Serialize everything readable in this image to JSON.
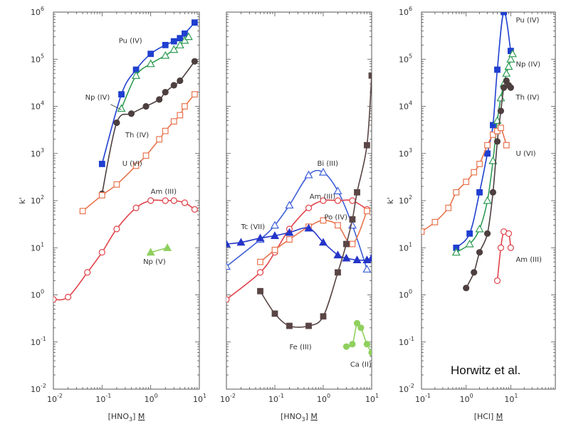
{
  "colors": {
    "Pu (IV)": "#1f3fd0",
    "Np (IV)": "#2e9b54",
    "Th (IV)": "#4d3f3f",
    "U (VI)": "#e8744e",
    "Am (III)": "#e0424a",
    "Np (V)": "#8fd05e",
    "Bi (III)": "#3f5fd8",
    "Tc (VII)": "#2535c8",
    "Po (IV)": "#e8744e",
    "Fe (III)": "#5a4545",
    "Ca (II)": "#8fd05e",
    "frame": "#555555"
  },
  "credit": "Horwitz et al.",
  "chart_data": [
    {
      "type": "scatter",
      "panel": "left",
      "xlabel": "[HNO3] M",
      "ylabel": "k'",
      "xscale": "log",
      "yscale": "log",
      "xlim": [
        0.01,
        10
      ],
      "ylim": [
        0.01,
        1000000
      ],
      "x_ticks": [
        {
          "b": "10",
          "e": "-2"
        },
        {
          "b": "10",
          "e": "-1"
        },
        {
          "b": "10",
          "e": "0"
        },
        {
          "b": "10",
          "e": "1"
        }
      ],
      "y_ticks": [
        {
          "b": "10",
          "e": "-2"
        },
        {
          "b": "10",
          "e": "-1"
        },
        {
          "b": "10",
          "e": "0"
        },
        {
          "b": "10",
          "e": "1"
        },
        {
          "b": "10",
          "e": "2"
        },
        {
          "b": "10",
          "e": "3"
        },
        {
          "b": "10",
          "e": "4"
        },
        {
          "b": "10",
          "e": "5"
        },
        {
          "b": "10",
          "e": "6"
        }
      ],
      "series": [
        {
          "name": "Pu (IV)",
          "marker": "square-filled",
          "x": [
            0.1,
            0.25,
            0.5,
            1,
            2,
            3,
            4,
            5,
            8
          ],
          "y": [
            600,
            18000,
            60000,
            130000,
            200000,
            240000,
            280000,
            350000,
            600000
          ]
        },
        {
          "name": "Np (IV)",
          "marker": "triangle-open",
          "x": [
            0.25,
            0.5,
            1,
            2,
            3,
            4,
            5,
            6
          ],
          "y": [
            9000,
            45000,
            80000,
            120000,
            160000,
            200000,
            250000,
            300000
          ]
        },
        {
          "name": "Th (IV)",
          "marker": "circle-filled",
          "x": [
            0.1,
            0.2,
            0.4,
            0.8,
            1.5,
            2,
            3,
            4,
            8
          ],
          "y": [
            140,
            4500,
            7000,
            10000,
            14000,
            20000,
            28000,
            35000,
            90000
          ]
        },
        {
          "name": "U (VI)",
          "marker": "square-open",
          "x": [
            0.04,
            0.1,
            0.2,
            0.5,
            0.8,
            1.5,
            2,
            3,
            4,
            5,
            8
          ],
          "y": [
            60,
            130,
            220,
            550,
            900,
            2000,
            3000,
            4800,
            6500,
            10000,
            18000
          ]
        },
        {
          "name": "Am (III)",
          "marker": "circle-open",
          "x": [
            0.01,
            0.02,
            0.05,
            0.1,
            0.2,
            0.5,
            1,
            2,
            3,
            5,
            8
          ],
          "y": [
            0.8,
            0.9,
            3,
            8,
            25,
            70,
            100,
            100,
            100,
            90,
            65
          ]
        },
        {
          "name": "Np (V)",
          "marker": "triangle-filled",
          "x": [
            1,
            2.2
          ],
          "y": [
            8,
            10
          ]
        }
      ],
      "labels": [
        {
          "text": "Pu (IV)",
          "x": 0.22,
          "y": 220000
        },
        {
          "text": "Np (IV)",
          "x": 0.045,
          "y": 14000
        },
        {
          "text": "Th (IV)",
          "x": 0.3,
          "y": 2200
        },
        {
          "text": "U (VI)",
          "x": 0.26,
          "y": 550
        },
        {
          "text": "Am (III)",
          "x": 1.0,
          "y": 140
        },
        {
          "text": "Np (V)",
          "x": 0.7,
          "y": 4.5
        }
      ]
    },
    {
      "type": "scatter",
      "panel": "middle",
      "xlabel": "[HNO3] M",
      "xscale": "log",
      "yscale": "log",
      "xlim": [
        0.01,
        10
      ],
      "ylim": [
        0.01,
        1000000
      ],
      "x_ticks": [
        {
          "b": "10",
          "e": "-2"
        },
        {
          "b": "10",
          "e": "-1"
        },
        {
          "b": "10",
          "e": "0"
        },
        {
          "b": "10",
          "e": "1"
        }
      ],
      "series": [
        {
          "name": "Bi (III)",
          "marker": "triangle-open",
          "x": [
            0.01,
            0.05,
            0.1,
            0.2,
            0.5,
            1,
            2,
            4,
            8
          ],
          "y": [
            4,
            15,
            30,
            80,
            350,
            400,
            160,
            30,
            3.5
          ]
        },
        {
          "name": "Am (III)",
          "marker": "circle-open",
          "x": [
            0.01,
            0.05,
            0.1,
            0.2,
            0.5,
            1,
            2,
            4,
            8
          ],
          "y": [
            0.8,
            3,
            8,
            25,
            70,
            100,
            100,
            100,
            65
          ]
        },
        {
          "name": "Po (IV)",
          "marker": "square-open",
          "x": [
            0.05,
            0.1,
            0.2,
            0.5,
            1,
            2,
            4,
            8
          ],
          "y": [
            5,
            9,
            15,
            28,
            38,
            30,
            12,
            60
          ]
        },
        {
          "name": "Tc (VII)",
          "marker": "triangle-filled",
          "x": [
            0.01,
            0.02,
            0.05,
            0.1,
            0.2,
            0.5,
            1,
            2,
            3,
            5,
            8,
            10
          ],
          "y": [
            12,
            13,
            16,
            18,
            21,
            26,
            13,
            7,
            6,
            5.5,
            5.5,
            6
          ]
        },
        {
          "name": "Fe (III)",
          "marker": "square-filled",
          "x": [
            0.05,
            0.1,
            0.2,
            0.5,
            1,
            2,
            3,
            4,
            5,
            8,
            10
          ],
          "y": [
            1.2,
            0.4,
            0.22,
            0.22,
            0.35,
            3,
            12,
            40,
            150,
            1500,
            45000
          ]
        },
        {
          "name": "Ca (II)",
          "marker": "circle-filled",
          "x": [
            3,
            4,
            5,
            6,
            8,
            10
          ],
          "y": [
            0.08,
            0.09,
            0.25,
            0.2,
            0.09,
            0.06
          ]
        }
      ],
      "labels": [
        {
          "text": "Bi (III)",
          "x": 0.75,
          "y": 550
        },
        {
          "text": "Am (III)",
          "x": 0.52,
          "y": 110
        },
        {
          "text": "Po (IV)",
          "x": 1.05,
          "y": 40
        },
        {
          "text": "Tc (VII)",
          "x": 0.02,
          "y": 25
        },
        {
          "text": "Fe (III)",
          "x": 0.2,
          "y": 0.07
        },
        {
          "text": "Ca (II)",
          "x": 3.6,
          "y": 0.03
        }
      ]
    },
    {
      "type": "scatter",
      "panel": "right",
      "xlabel": "[HCl] M",
      "ylabel": "k'",
      "xscale": "log",
      "yscale": "log",
      "xlim": [
        0.1,
        100
      ],
      "ylim": [
        0.01,
        1000000
      ],
      "x_ticks": [
        {
          "b": "10",
          "e": "-1"
        },
        {
          "b": "10",
          "e": "0"
        },
        {
          "b": "10",
          "e": "1"
        }
      ],
      "y_ticks": [
        {
          "b": "10",
          "e": "-2"
        },
        {
          "b": "10",
          "e": "-1"
        },
        {
          "b": "10",
          "e": "0"
        },
        {
          "b": "10",
          "e": "1"
        },
        {
          "b": "10",
          "e": "2"
        },
        {
          "b": "10",
          "e": "3"
        },
        {
          "b": "10",
          "e": "4"
        },
        {
          "b": "10",
          "e": "5"
        },
        {
          "b": "10",
          "e": "6"
        }
      ],
      "series": [
        {
          "name": "Pu (IV)",
          "marker": "square-filled",
          "x": [
            0.6,
            1.2,
            2,
            3,
            4,
            5,
            7,
            10
          ],
          "y": [
            10,
            20,
            150,
            1000,
            4000,
            60000,
            1000000,
            150000
          ]
        },
        {
          "name": "Np (IV)",
          "marker": "triangle-open",
          "x": [
            0.6,
            1.2,
            2,
            3,
            4,
            5,
            6,
            7,
            8,
            9,
            10,
            11
          ],
          "y": [
            8,
            12,
            25,
            100,
            700,
            5000,
            15000,
            30000,
            50000,
            70000,
            100000,
            130000
          ]
        },
        {
          "name": "Th (IV)",
          "marker": "circle-filled",
          "x": [
            1,
            1.5,
            2,
            3,
            4,
            5,
            6,
            7,
            8,
            9,
            10
          ],
          "y": [
            1.4,
            3,
            8,
            20,
            150,
            1800,
            8000,
            25000,
            35000,
            28000,
            25000
          ]
        },
        {
          "name": "U (VI)",
          "marker": "square-open",
          "x": [
            0.1,
            0.2,
            0.4,
            0.6,
            1,
            1.5,
            2,
            3,
            4,
            5,
            6,
            8
          ],
          "y": [
            22,
            35,
            70,
            150,
            250,
            400,
            600,
            1500,
            2500,
            3000,
            3500,
            1500
          ]
        },
        {
          "name": "Am (III)",
          "marker": "circle-open",
          "x": [
            5,
            6,
            7,
            9,
            10
          ],
          "y": [
            2,
            10,
            22,
            20,
            10
          ]
        }
      ],
      "labels": [
        {
          "text": "Pu (IV)",
          "x": 13,
          "y": 600000
        },
        {
          "text": "Np (IV)",
          "x": 13,
          "y": 70000
        },
        {
          "text": "Th (IV)",
          "x": 13,
          "y": 14000
        },
        {
          "text": "U (VI)",
          "x": 13,
          "y": 900
        },
        {
          "text": "Am (III)",
          "x": 13,
          "y": 5
        }
      ]
    }
  ]
}
